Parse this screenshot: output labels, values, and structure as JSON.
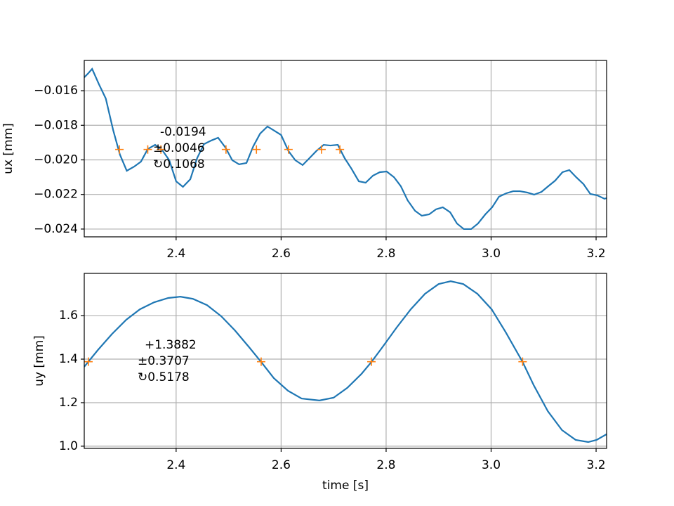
{
  "chart_data": [
    {
      "type": "line",
      "ylabel": "ux [mm]",
      "annotation": [
        "-0.0194",
        "±0.0046",
        "↻0.1068"
      ],
      "x": [
        2.225,
        2.233,
        2.24,
        2.253,
        2.266,
        2.28,
        2.293,
        2.306,
        2.32,
        2.333,
        2.346,
        2.36,
        2.373,
        2.387,
        2.4,
        2.413,
        2.427,
        2.44,
        2.453,
        2.467,
        2.48,
        2.494,
        2.507,
        2.52,
        2.534,
        2.547,
        2.56,
        2.574,
        2.587,
        2.6,
        2.614,
        2.627,
        2.641,
        2.654,
        2.667,
        2.681,
        2.694,
        2.708,
        2.721,
        2.734,
        2.748,
        2.761,
        2.775,
        2.788,
        2.801,
        2.815,
        2.828,
        2.841,
        2.855,
        2.868,
        2.882,
        2.895,
        2.908,
        2.922,
        2.935,
        2.948,
        2.962,
        2.975,
        2.989,
        3.002,
        3.015,
        3.029,
        3.042,
        3.055,
        3.069,
        3.082,
        3.096,
        3.109,
        3.122,
        3.136,
        3.149,
        3.162,
        3.176,
        3.189,
        3.202,
        3.216,
        3.22
      ],
      "values": [
        -0.01523,
        -0.01498,
        -0.01474,
        -0.01563,
        -0.01645,
        -0.01827,
        -0.0197,
        -0.02063,
        -0.02039,
        -0.0201,
        -0.01937,
        -0.01913,
        -0.01941,
        -0.02002,
        -0.02124,
        -0.02156,
        -0.02112,
        -0.0199,
        -0.01909,
        -0.01888,
        -0.01872,
        -0.01929,
        -0.02002,
        -0.02026,
        -0.02018,
        -0.01921,
        -0.01848,
        -0.01807,
        -0.01831,
        -0.01856,
        -0.01949,
        -0.02002,
        -0.0203,
        -0.0199,
        -0.01949,
        -0.01913,
        -0.01917,
        -0.01913,
        -0.0199,
        -0.02051,
        -0.02124,
        -0.02132,
        -0.02091,
        -0.02071,
        -0.02067,
        -0.021,
        -0.02152,
        -0.02234,
        -0.02294,
        -0.02323,
        -0.02315,
        -0.02286,
        -0.02274,
        -0.02303,
        -0.02368,
        -0.024,
        -0.024,
        -0.02368,
        -0.02315,
        -0.02274,
        -0.02213,
        -0.02193,
        -0.02181,
        -0.02181,
        -0.02189,
        -0.02201,
        -0.02185,
        -0.02152,
        -0.0212,
        -0.02071,
        -0.02059,
        -0.021,
        -0.0214,
        -0.02197,
        -0.02205,
        -0.02225,
        -0.02221
      ],
      "color": "#1f77b4",
      "markers": {
        "x": [
          2.292,
          2.346,
          2.371,
          2.495,
          2.553,
          2.614,
          2.677,
          2.712
        ],
        "values": [
          -0.0194,
          -0.0194,
          -0.0194,
          -0.0194,
          -0.0194,
          -0.0194,
          -0.0194,
          -0.0194
        ],
        "color": "#ff7f0e"
      },
      "xlim": [
        2.225,
        3.22
      ],
      "xticks": [
        2.4,
        2.6,
        2.8,
        {
          "value": 3.0,
          "label": "3.0"
        },
        3.2
      ],
      "ylim": [
        -0.02445,
        -0.01425
      ],
      "yticks": [
        {
          "value": -0.016,
          "label": "−0.016"
        },
        {
          "value": -0.018,
          "label": "−0.018"
        },
        {
          "value": -0.02,
          "label": "−0.020"
        },
        {
          "value": -0.022,
          "label": "−0.022"
        },
        {
          "value": -0.024,
          "label": "−0.024"
        }
      ],
      "grid": true
    },
    {
      "type": "line",
      "ylabel": "uy [mm]",
      "xlabel": "time [s]",
      "annotation": [
        "+1.3882",
        "±0.3707",
        "↻0.5178"
      ],
      "x": [
        2.225,
        2.251,
        2.278,
        2.305,
        2.331,
        2.358,
        2.385,
        2.408,
        2.432,
        2.459,
        2.486,
        2.512,
        2.539,
        2.562,
        2.586,
        2.613,
        2.639,
        2.673,
        2.7,
        2.726,
        2.753,
        2.772,
        2.793,
        2.82,
        2.847,
        2.874,
        2.9,
        2.923,
        2.947,
        2.974,
        3.001,
        3.028,
        3.06,
        3.081,
        3.108,
        3.135,
        3.161,
        3.185,
        3.201,
        3.22
      ],
      "values": [
        1.365,
        1.442,
        1.516,
        1.581,
        1.629,
        1.661,
        1.681,
        1.687,
        1.677,
        1.648,
        1.597,
        1.532,
        1.455,
        1.387,
        1.313,
        1.255,
        1.219,
        1.21,
        1.223,
        1.268,
        1.332,
        1.387,
        1.455,
        1.545,
        1.629,
        1.7,
        1.745,
        1.758,
        1.745,
        1.7,
        1.629,
        1.523,
        1.387,
        1.281,
        1.161,
        1.074,
        1.029,
        1.019,
        1.029,
        1.055
      ],
      "color": "#1f77b4",
      "markers": {
        "x": [
          2.233,
          2.562,
          2.772,
          3.06
        ],
        "values": [
          1.3882,
          1.3882,
          1.3882,
          1.3882
        ],
        "color": "#ff7f0e"
      },
      "xlim": [
        2.225,
        3.22
      ],
      "xticks": [
        2.4,
        2.6,
        2.8,
        {
          "value": 3.0,
          "label": "3.0"
        },
        3.2
      ],
      "ylim": [
        0.99,
        1.794
      ],
      "yticks": [
        {
          "value": 1.0,
          "label": "1.0"
        },
        1.2,
        1.4,
        1.6
      ],
      "grid": true
    }
  ]
}
